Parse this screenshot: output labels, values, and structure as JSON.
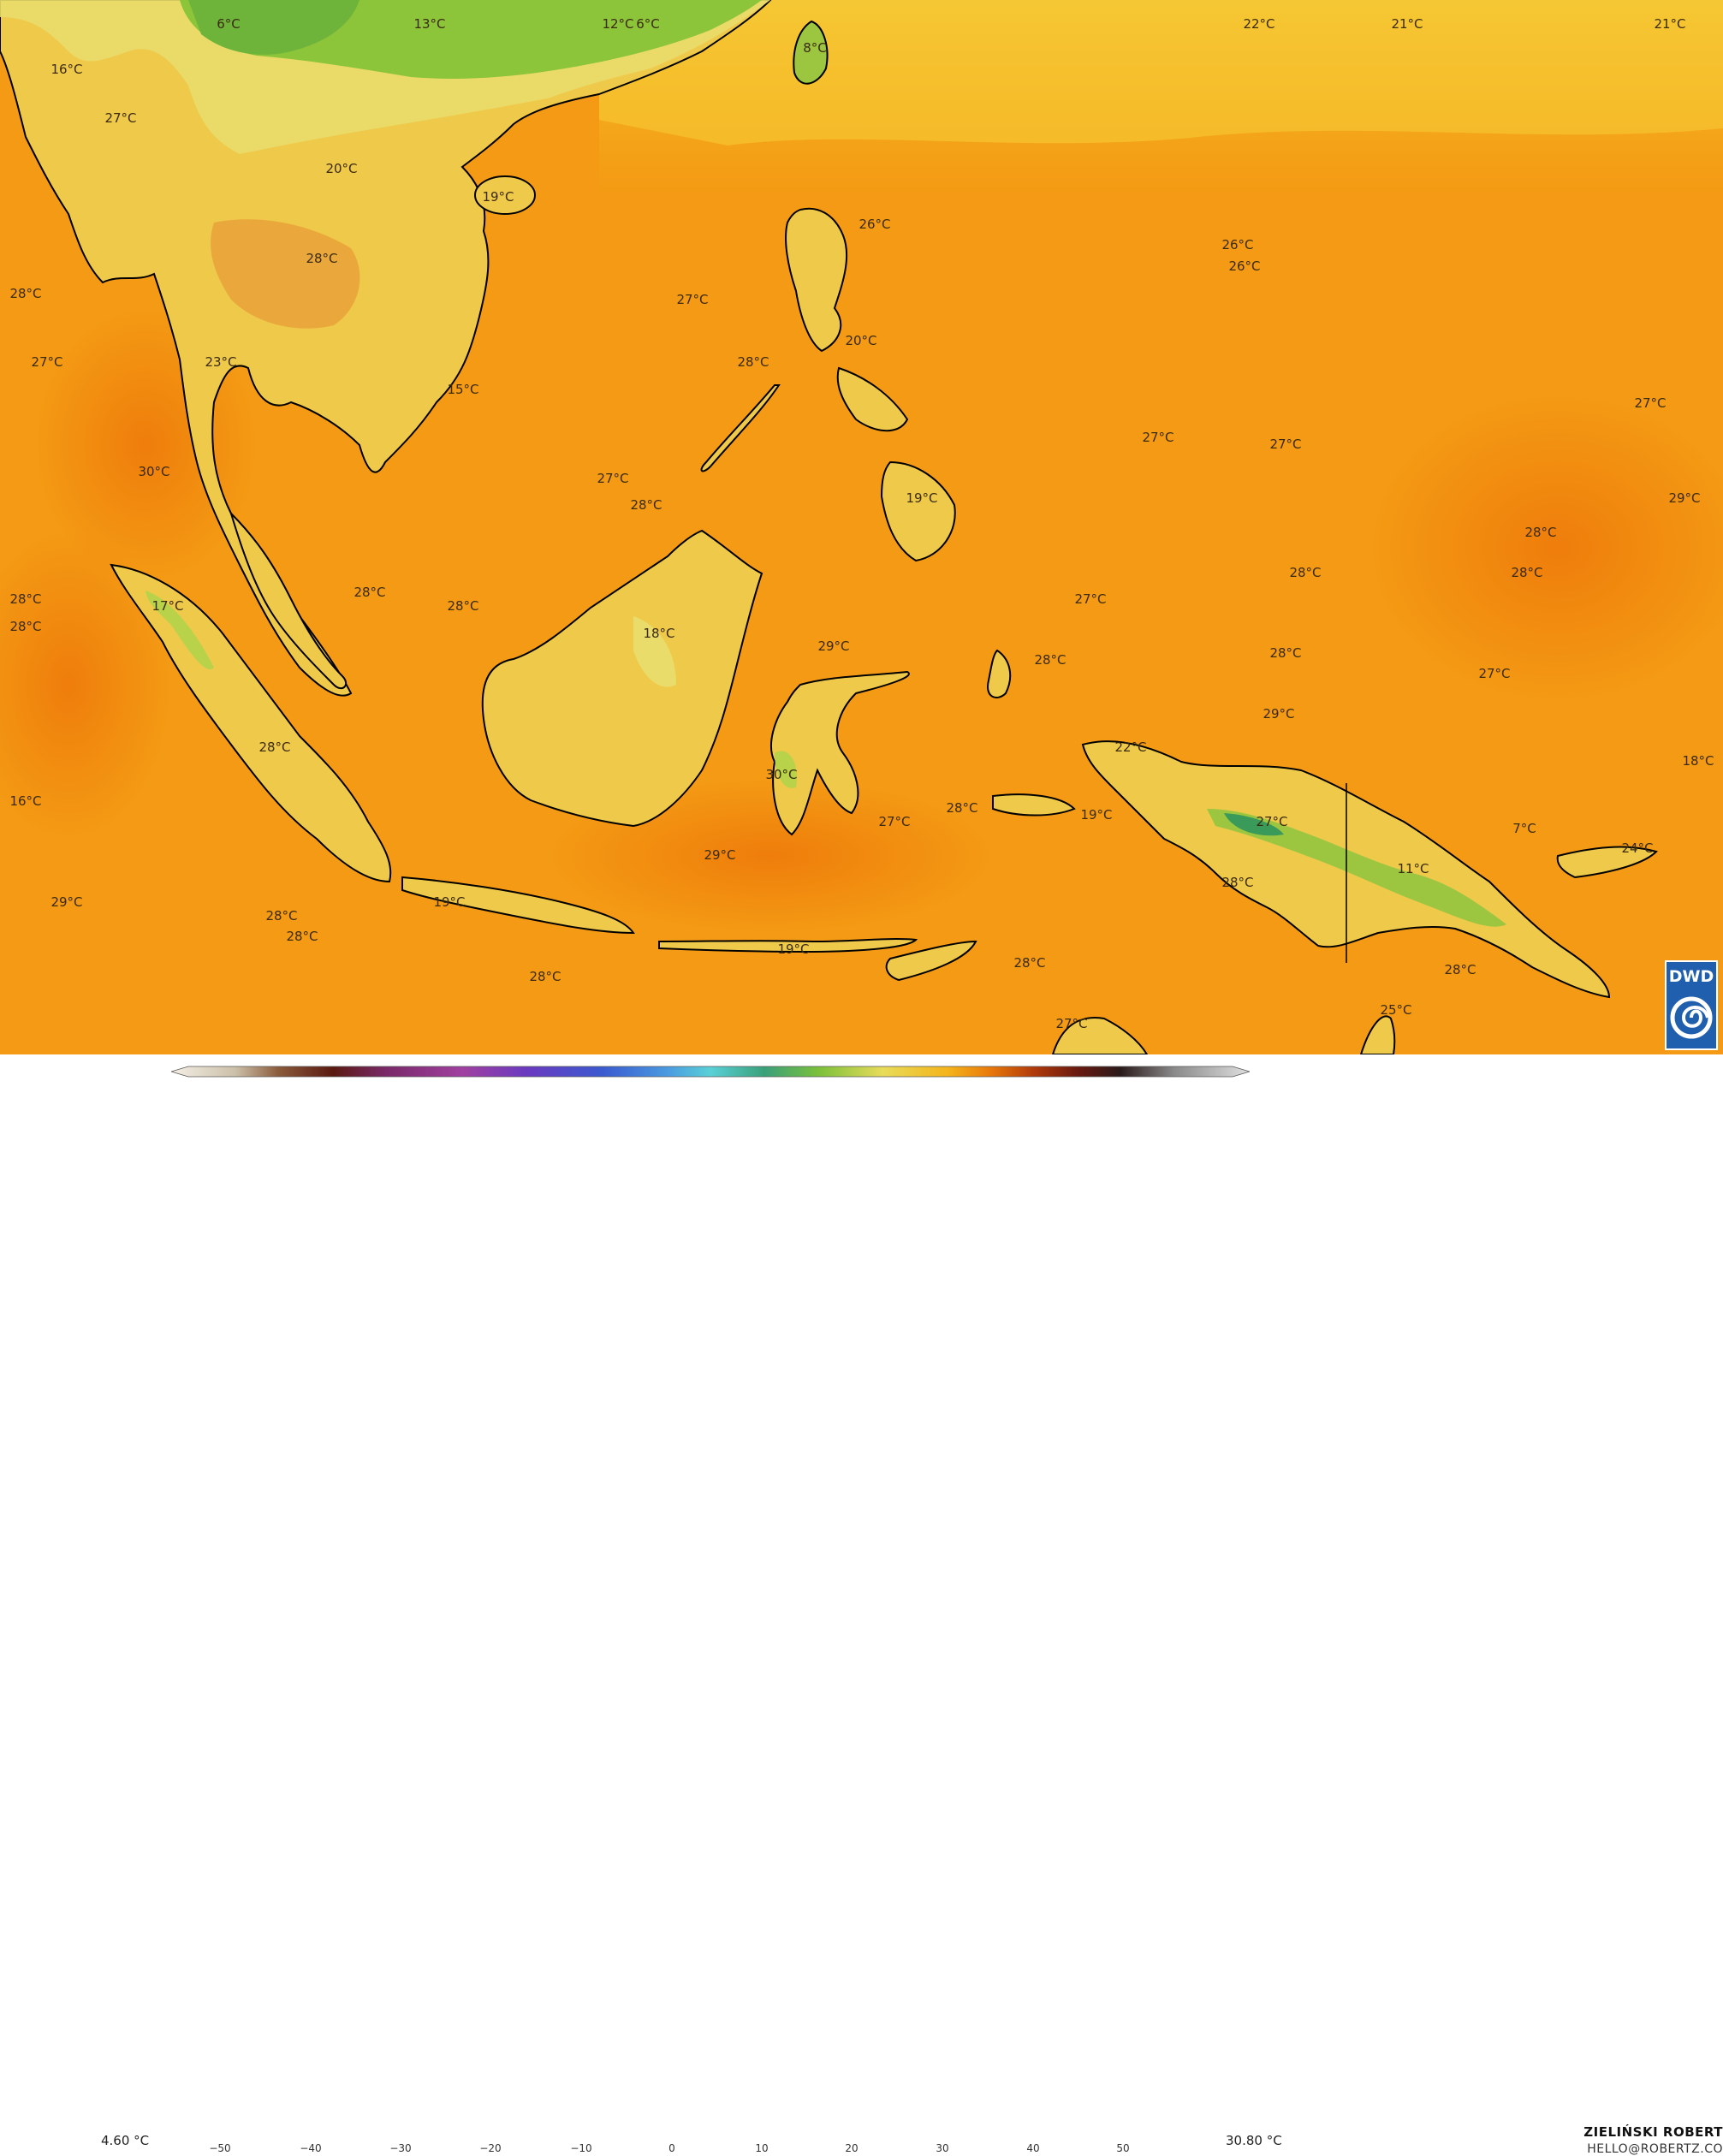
{
  "map": {
    "colors": {
      "ocean": "#f49a14",
      "ocean_warm": "#f0860c",
      "sea_cool": "#f7b418",
      "land_low": "#efc94a",
      "land_mid": "#e9dc6a",
      "highland": "#b8d24a",
      "north_green": "#8cc43a",
      "coast": "#000000"
    },
    "temperature_labels": [
      "6°C",
      "13°C",
      "12°C",
      "6°C",
      "8°C",
      "22°C",
      "21°C",
      "21°C",
      "16°C",
      "27°C",
      "20°C",
      "19°C",
      "28°C",
      "26°C",
      "26°C",
      "26°C",
      "28°C",
      "27°C",
      "27°C",
      "23°C",
      "20°C",
      "28°C",
      "15°C",
      "27°C",
      "27°C",
      "27°C",
      "30°C",
      "27°C",
      "28°C",
      "19°C",
      "29°C",
      "28°C",
      "28°C",
      "28°C",
      "28°C",
      "28°C",
      "27°C",
      "17°C",
      "28°C",
      "28°C",
      "18°C",
      "29°C",
      "28°C",
      "28°C",
      "27°C",
      "29°C",
      "28°C",
      "22°C",
      "18°C",
      "30°C",
      "16°C",
      "27°C",
      "28°C",
      "19°C",
      "27°C",
      "7°C",
      "29°C",
      "24°C",
      "29°C",
      "11°C",
      "28°C",
      "28°C",
      "19°C",
      "28°C",
      "28°C",
      "19°C",
      "28°C",
      "28°C",
      "27°C",
      "25°C"
    ]
  },
  "colorbar": {
    "min_label": "4.60 °C",
    "max_label": "30.80 °C",
    "ticks": [
      "−50",
      "−40",
      "−30",
      "−20",
      "−10",
      "0",
      "10",
      "20",
      "30",
      "40",
      "50"
    ]
  },
  "credits": {
    "author": "ZIELIŃSKI ROBERT",
    "email": "HELLO@ROBERTZ.CO"
  },
  "logo": {
    "text": "DWD"
  }
}
